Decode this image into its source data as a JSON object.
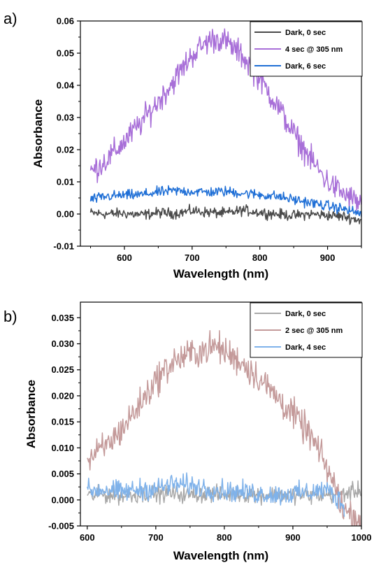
{
  "chart_data": [
    {
      "type": "line",
      "panel_label": "a)",
      "xlabel": "Wavelength (nm)",
      "ylabel": "Absorbance",
      "xlim": [
        535,
        950
      ],
      "ylim": [
        -0.01,
        0.06
      ],
      "xticks": [
        600,
        700,
        800,
        900
      ],
      "yticks": [
        -0.01,
        0.0,
        0.01,
        0.02,
        0.03,
        0.04,
        0.05,
        0.06
      ],
      "ytick_labels": [
        "-0.01",
        "0.00",
        "0.01",
        "0.02",
        "0.03",
        "0.04",
        "0.05",
        "0.06"
      ],
      "legend_position": "top-right",
      "series": [
        {
          "name": "Dark, 0 sec",
          "color": "#4a4a4a",
          "x": [
            550,
            575,
            600,
            625,
            650,
            675,
            700,
            725,
            750,
            775,
            800,
            825,
            850,
            875,
            900,
            925,
            950
          ],
          "y": [
            0.0003,
            0.0,
            0.0002,
            -0.0003,
            0.0004,
            0.0002,
            0.001,
            0.0005,
            0.0002,
            0.0012,
            0.0005,
            0.0,
            -0.0005,
            0.0,
            -0.0004,
            -0.0008,
            -0.002
          ]
        },
        {
          "name": "4 sec @ 305 nm",
          "color": "#a86fd8",
          "x": [
            550,
            575,
            600,
            625,
            650,
            675,
            700,
            725,
            740,
            750,
            775,
            800,
            825,
            850,
            875,
            900,
            925,
            950
          ],
          "y": [
            0.013,
            0.017,
            0.0225,
            0.0285,
            0.035,
            0.042,
            0.0495,
            0.054,
            0.0545,
            0.0535,
            0.049,
            0.042,
            0.034,
            0.025,
            0.017,
            0.01,
            0.006,
            0.003
          ]
        },
        {
          "name": "Dark, 6 sec",
          "color": "#1f6fd6",
          "x": [
            550,
            575,
            600,
            625,
            650,
            675,
            700,
            725,
            750,
            775,
            800,
            825,
            850,
            875,
            900,
            925,
            950
          ],
          "y": [
            0.0045,
            0.0055,
            0.0058,
            0.006,
            0.0068,
            0.0072,
            0.007,
            0.0068,
            0.007,
            0.0065,
            0.006,
            0.0055,
            0.0045,
            0.0035,
            0.0025,
            0.0015,
            0.0
          ]
        }
      ]
    },
    {
      "type": "line",
      "panel_label": "b)",
      "xlabel": "Wavelength (nm)",
      "ylabel": "Absorbance",
      "xlim": [
        590,
        1000
      ],
      "ylim": [
        -0.005,
        0.038
      ],
      "xticks": [
        600,
        700,
        800,
        900,
        1000
      ],
      "yticks": [
        -0.005,
        0.0,
        0.005,
        0.01,
        0.015,
        0.02,
        0.025,
        0.03,
        0.035
      ],
      "ytick_labels": [
        "-0.005",
        "0.000",
        "0.005",
        "0.010",
        "0.015",
        "0.020",
        "0.025",
        "0.030",
        "0.035"
      ],
      "legend_position": "top-right",
      "series": [
        {
          "name": "Dark, 0 sec",
          "color": "#a8a8a8",
          "x": [
            600,
            625,
            650,
            675,
            700,
            725,
            750,
            775,
            800,
            825,
            850,
            875,
            900,
            925,
            950,
            975,
            1000
          ],
          "y": [
            0.0008,
            0.001,
            0.0008,
            0.001,
            0.0012,
            0.0012,
            0.001,
            0.0012,
            0.001,
            0.0012,
            0.001,
            0.001,
            0.001,
            0.0008,
            0.001,
            0.0012,
            0.002
          ]
        },
        {
          "name": "2 sec @ 305 nm",
          "color": "#c49a9a",
          "x": [
            600,
            625,
            650,
            675,
            700,
            725,
            750,
            775,
            790,
            800,
            825,
            850,
            875,
            900,
            925,
            950,
            975,
            1000
          ],
          "y": [
            0.0075,
            0.01,
            0.0135,
            0.018,
            0.023,
            0.0265,
            0.028,
            0.029,
            0.0295,
            0.0285,
            0.0265,
            0.0235,
            0.02,
            0.0165,
            0.0125,
            0.006,
            -0.002,
            -0.004
          ]
        },
        {
          "name": "Dark, 4 sec",
          "color": "#7fb2ea",
          "x": [
            600,
            625,
            650,
            675,
            700,
            725,
            750,
            775,
            800,
            825,
            850,
            875,
            900,
            925,
            950,
            975
          ],
          "y": [
            0.0018,
            0.002,
            0.0015,
            0.002,
            0.0022,
            0.003,
            0.0028,
            0.0022,
            0.0018,
            0.0015,
            0.0012,
            0.001,
            0.0012,
            0.0015,
            0.002,
            -0.001
          ]
        }
      ]
    }
  ]
}
